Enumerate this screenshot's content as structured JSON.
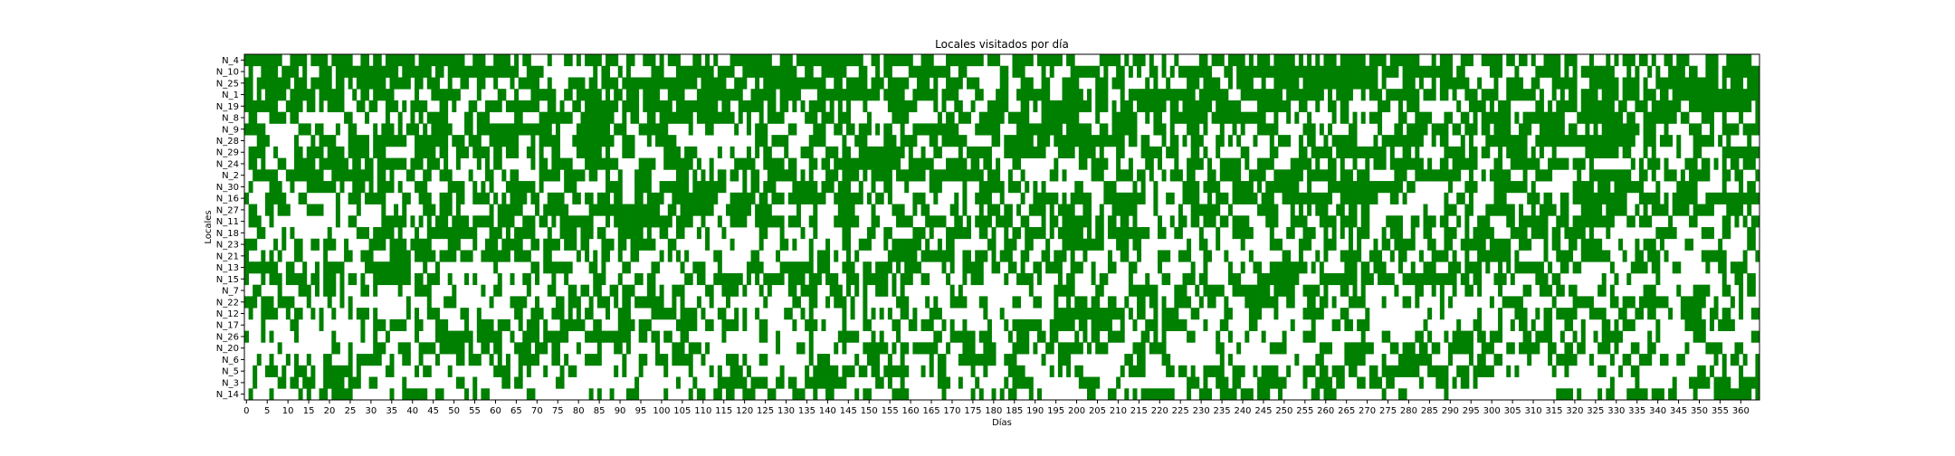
{
  "chart_data": {
    "type": "heatmap",
    "title": "Locales visitados por día",
    "xlabel": "Días",
    "ylabel": "Locales",
    "x_ticks": [
      0,
      5,
      10,
      15,
      20,
      25,
      30,
      35,
      40,
      45,
      50,
      55,
      60,
      65,
      70,
      75,
      80,
      85,
      90,
      95,
      100,
      105,
      110,
      115,
      120,
      125,
      130,
      135,
      140,
      145,
      150,
      155,
      160,
      165,
      170,
      175,
      180,
      185,
      190,
      195,
      200,
      205,
      210,
      215,
      220,
      225,
      230,
      235,
      240,
      245,
      250,
      255,
      260,
      265,
      270,
      275,
      280,
      285,
      290,
      295,
      300,
      305,
      310,
      315,
      320,
      325,
      330,
      335,
      340,
      345,
      350,
      355,
      360
    ],
    "xlim": [
      0,
      365
    ],
    "locales": [
      "N_4",
      "N_10",
      "N_25",
      "N_1",
      "N_19",
      "N_8",
      "N_9",
      "N_28",
      "N_29",
      "N_24",
      "N_2",
      "N_30",
      "N_16",
      "N_27",
      "N_11",
      "N_18",
      "N_23",
      "N_21",
      "N_13",
      "N_15",
      "N_7",
      "N_22",
      "N_12",
      "N_17",
      "N_26",
      "N_20",
      "N_6",
      "N_5",
      "N_3",
      "N_14"
    ],
    "visit_probability": [
      0.62,
      0.61,
      0.6,
      0.6,
      0.59,
      0.58,
      0.57,
      0.56,
      0.55,
      0.54,
      0.54,
      0.53,
      0.52,
      0.51,
      0.5,
      0.48,
      0.47,
      0.46,
      0.46,
      0.45,
      0.45,
      0.44,
      0.44,
      0.43,
      0.42,
      0.42,
      0.41,
      0.4,
      0.39,
      0.38
    ],
    "visited_color": "#008000",
    "not_visited_color": "#ffffff",
    "note_values": "binary matrix: 1 = visited (green), 0 = not visited (white); 30 locales x 365 days"
  }
}
